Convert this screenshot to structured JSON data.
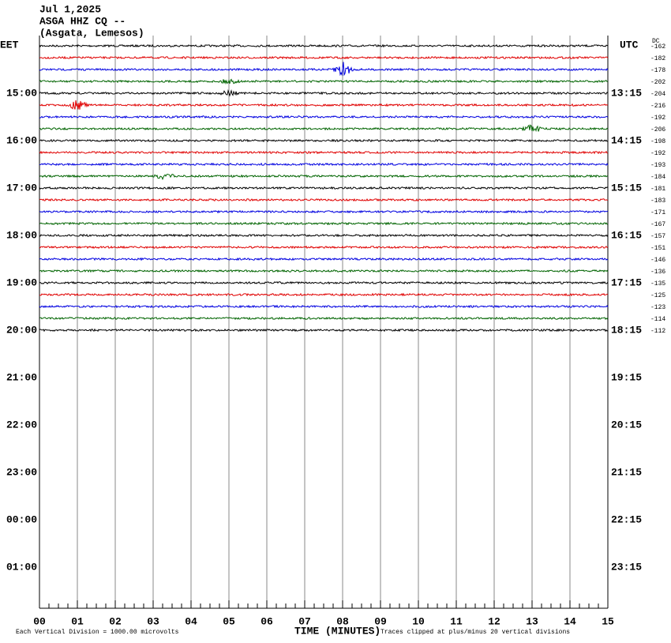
{
  "header": {
    "date": "Jul 1,2025",
    "station": "ASGA HHZ CQ --",
    "location": "(Asgata, Lemesos)"
  },
  "left_axis": {
    "title": "EET",
    "labels": [
      "15:00",
      "16:00",
      "17:00",
      "18:00",
      "19:00",
      "20:00",
      "21:00",
      "22:00",
      "23:00",
      "00:00",
      "01:00"
    ]
  },
  "right_axis": {
    "title": "UTC",
    "labels": [
      "13:15",
      "14:15",
      "15:15",
      "16:15",
      "17:15",
      "18:15",
      "19:15",
      "20:15",
      "21:15",
      "22:15",
      "23:15"
    ]
  },
  "dc": {
    "title": "DC",
    "values": [
      -162,
      -182,
      -178,
      -202,
      -204,
      -216,
      -192,
      -206,
      -198,
      -192,
      -193,
      -184,
      -181,
      -183,
      -171,
      -167,
      -157,
      -151,
      -146,
      -136,
      -135,
      -125,
      -123,
      -114,
      -112
    ]
  },
  "trace_colors": [
    "#000000",
    "#e00000",
    "#0000e0",
    "#006400"
  ],
  "x_axis": {
    "title": "TIME (MINUTES)",
    "labels": [
      "00",
      "01",
      "02",
      "03",
      "04",
      "05",
      "06",
      "07",
      "08",
      "09",
      "10",
      "11",
      "12",
      "13",
      "14",
      "15"
    ]
  },
  "footer": {
    "scale": "Each Vertical Division = 1000.00 microvolts",
    "clip": "Traces clipped at plus/minus 20 vertical divisions"
  }
}
